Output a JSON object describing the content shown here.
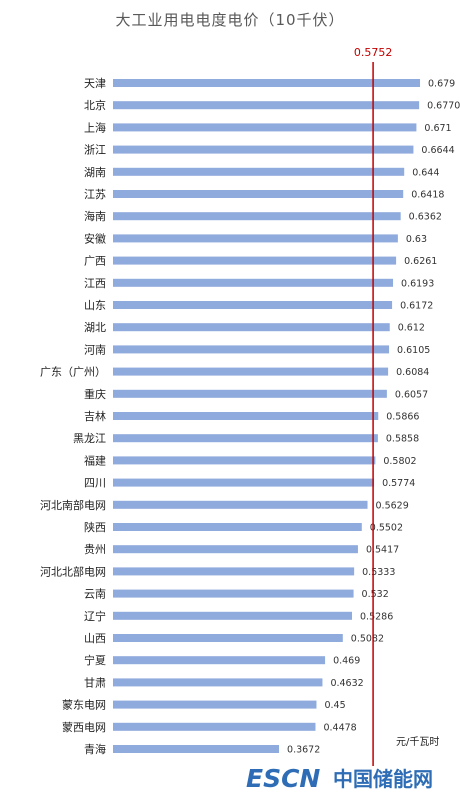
{
  "chart_data": {
    "type": "bar",
    "orientation": "horizontal",
    "title": "大工业用电电度电价（10千伏）",
    "unit": "元/千瓦时",
    "reference_line": {
      "value": 0.5752,
      "label": "0.5752",
      "color": "#c00000"
    },
    "bar_color": "#8faadc",
    "xlim": [
      0,
      0.69
    ],
    "categories": [
      "天津",
      "北京",
      "上海",
      "浙江",
      "湖南",
      "江苏",
      "海南",
      "安徽",
      "广西",
      "江西",
      "山东",
      "湖北",
      "河南",
      "广东（广州）",
      "重庆",
      "吉林",
      "黑龙江",
      "福建",
      "四川",
      "河北南部电网",
      "陕西",
      "贵州",
      "河北北部电网",
      "云南",
      "辽宁",
      "山西",
      "宁夏",
      "甘肃",
      "蒙东电网",
      "蒙西电网",
      "青海"
    ],
    "values": [
      0.679,
      0.677,
      0.671,
      0.6644,
      0.644,
      0.6418,
      0.6362,
      0.63,
      0.6261,
      0.6193,
      0.6172,
      0.612,
      0.6105,
      0.6084,
      0.6057,
      0.5866,
      0.5858,
      0.5802,
      0.5774,
      0.5629,
      0.5502,
      0.5417,
      0.5333,
      0.532,
      0.5286,
      0.5082,
      0.469,
      0.4632,
      0.45,
      0.4478,
      0.3672
    ],
    "value_labels": [
      "0.679",
      "0.6770",
      "0.671",
      "0.6644",
      "0.644",
      "0.6418",
      "0.6362",
      "0.63",
      "0.6261",
      "0.6193",
      "0.6172",
      "0.612",
      "0.6105",
      "0.6084",
      "0.6057",
      "0.5866",
      "0.5858",
      "0.5802",
      "0.5774",
      "0.5629",
      "0.5502",
      "0.5417",
      "0.5333",
      "0.532",
      "0.5286",
      "0.5082",
      "0.469",
      "0.4632",
      "0.45",
      "0.4478",
      "0.3672"
    ]
  },
  "watermark": {
    "latin": "ESCN",
    "chinese": "中国储能网",
    "color": "#2e6db5"
  }
}
